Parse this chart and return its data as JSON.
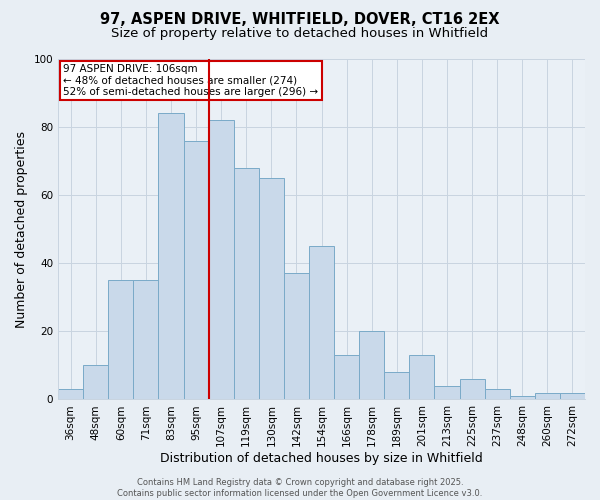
{
  "title1": "97, ASPEN DRIVE, WHITFIELD, DOVER, CT16 2EX",
  "title2": "Size of property relative to detached houses in Whitfield",
  "xlabel": "Distribution of detached houses by size in Whitfield",
  "ylabel": "Number of detached properties",
  "categories": [
    "36sqm",
    "48sqm",
    "60sqm",
    "71sqm",
    "83sqm",
    "95sqm",
    "107sqm",
    "119sqm",
    "130sqm",
    "142sqm",
    "154sqm",
    "166sqm",
    "178sqm",
    "189sqm",
    "201sqm",
    "213sqm",
    "225sqm",
    "237sqm",
    "248sqm",
    "260sqm",
    "272sqm"
  ],
  "values": [
    3,
    10,
    35,
    35,
    84,
    76,
    82,
    68,
    65,
    37,
    45,
    13,
    20,
    8,
    13,
    4,
    6,
    3,
    1,
    2,
    2
  ],
  "bar_color": "#c9d9ea",
  "bar_edge_color": "#7aaac8",
  "highlight_index": 6,
  "highlight_line_color": "#cc0000",
  "annotation_text": "97 ASPEN DRIVE: 106sqm\n← 48% of detached houses are smaller (274)\n52% of semi-detached houses are larger (296) →",
  "annotation_box_color": "white",
  "annotation_box_edge_color": "#cc0000",
  "ylim": [
    0,
    100
  ],
  "yticks": [
    0,
    20,
    40,
    60,
    80,
    100
  ],
  "footer": "Contains HM Land Registry data © Crown copyright and database right 2025.\nContains public sector information licensed under the Open Government Licence v3.0.",
  "bg_color": "#e8eef4",
  "plot_bg_color": "#eaf0f6",
  "grid_color": "#c8d4e0",
  "title1_fontsize": 10.5,
  "title2_fontsize": 9.5,
  "axis_label_fontsize": 9,
  "tick_fontsize": 7.5,
  "annotation_fontsize": 7.5,
  "footer_fontsize": 6
}
